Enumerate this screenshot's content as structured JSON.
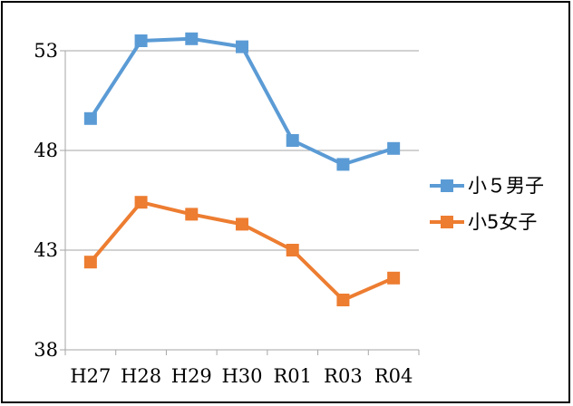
{
  "chart_data": {
    "type": "line",
    "title": "",
    "xlabel": "",
    "ylabel": "",
    "categories": [
      "H27",
      "H28",
      "H29",
      "H30",
      "R01",
      "R03",
      "R04"
    ],
    "ylim": [
      38,
      53
    ],
    "yticks": [
      38,
      43,
      48,
      53
    ],
    "yticklabels": [
      "38",
      "43",
      "48",
      "53"
    ],
    "grid": true,
    "legend_position": "right",
    "series": [
      {
        "name": "小５男子",
        "color": "#5B9BD5",
        "marker": "square",
        "values": [
          49.6,
          53.5,
          53.6,
          53.2,
          48.5,
          47.3,
          48.1
        ]
      },
      {
        "name": "小5女子",
        "color": "#ED7D31",
        "marker": "square",
        "values": [
          42.4,
          45.4,
          44.8,
          44.3,
          43.0,
          40.5,
          41.6
        ]
      }
    ]
  }
}
